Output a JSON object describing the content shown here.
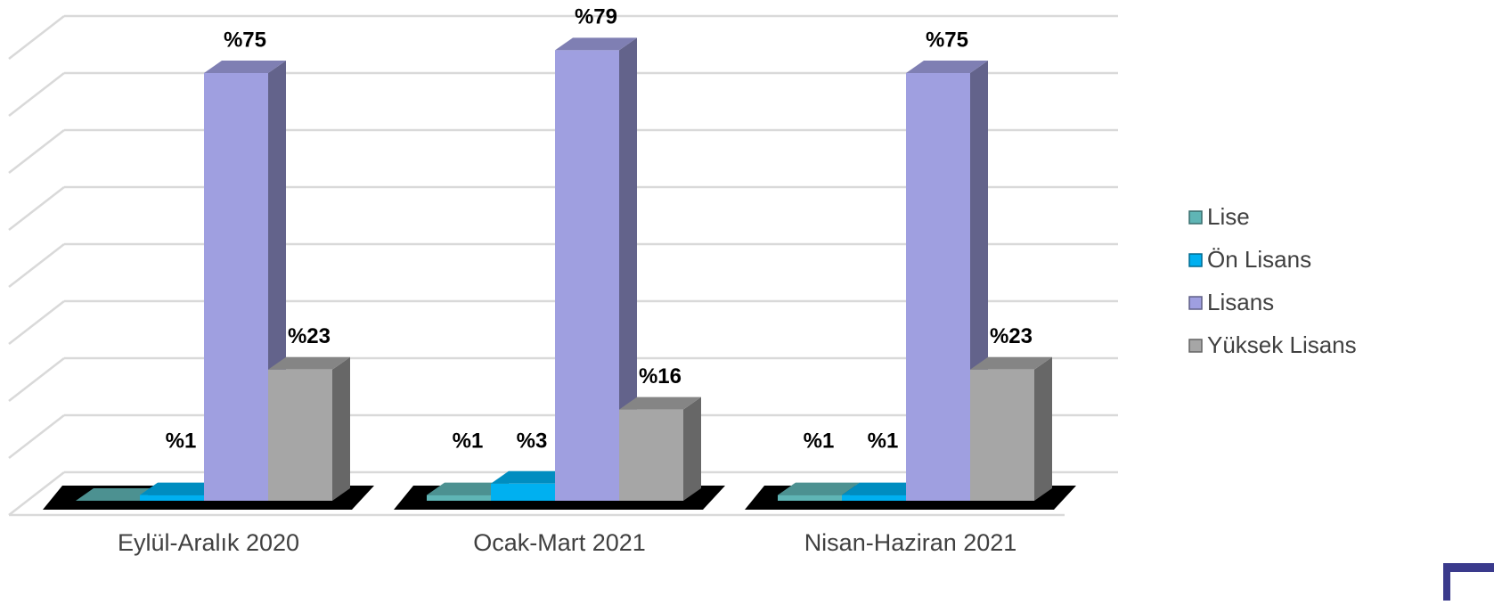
{
  "chart_data": {
    "type": "bar3d",
    "categories": [
      "Eylül-Aralık 2020",
      "Ocak-Mart 2021",
      "Nisan-Haziran 2021"
    ],
    "series": [
      {
        "name": "Lise",
        "color": "#5fb5b5",
        "values": [
          0,
          1,
          1
        ],
        "value_labels": [
          null,
          "%1",
          "%1"
        ]
      },
      {
        "name": "Ön Lisans",
        "color": "#00b0f0",
        "values": [
          1,
          3,
          1
        ],
        "value_labels": [
          "%1",
          "%3",
          "%1"
        ]
      },
      {
        "name": "Lisans",
        "color": "#9f9fe0",
        "values": [
          75,
          79,
          75
        ],
        "value_labels": [
          "%75",
          "%79",
          "%75"
        ]
      },
      {
        "name": "Yüksek Lisans",
        "color": "#a6a6a6",
        "values": [
          23,
          16,
          23
        ],
        "value_labels": [
          "%23",
          "%16",
          "%23"
        ]
      }
    ],
    "ylim": [
      0,
      80
    ],
    "yticks": [
      0,
      10,
      20,
      30,
      40,
      50,
      60,
      70,
      80
    ],
    "grid": true,
    "legend": "right"
  }
}
